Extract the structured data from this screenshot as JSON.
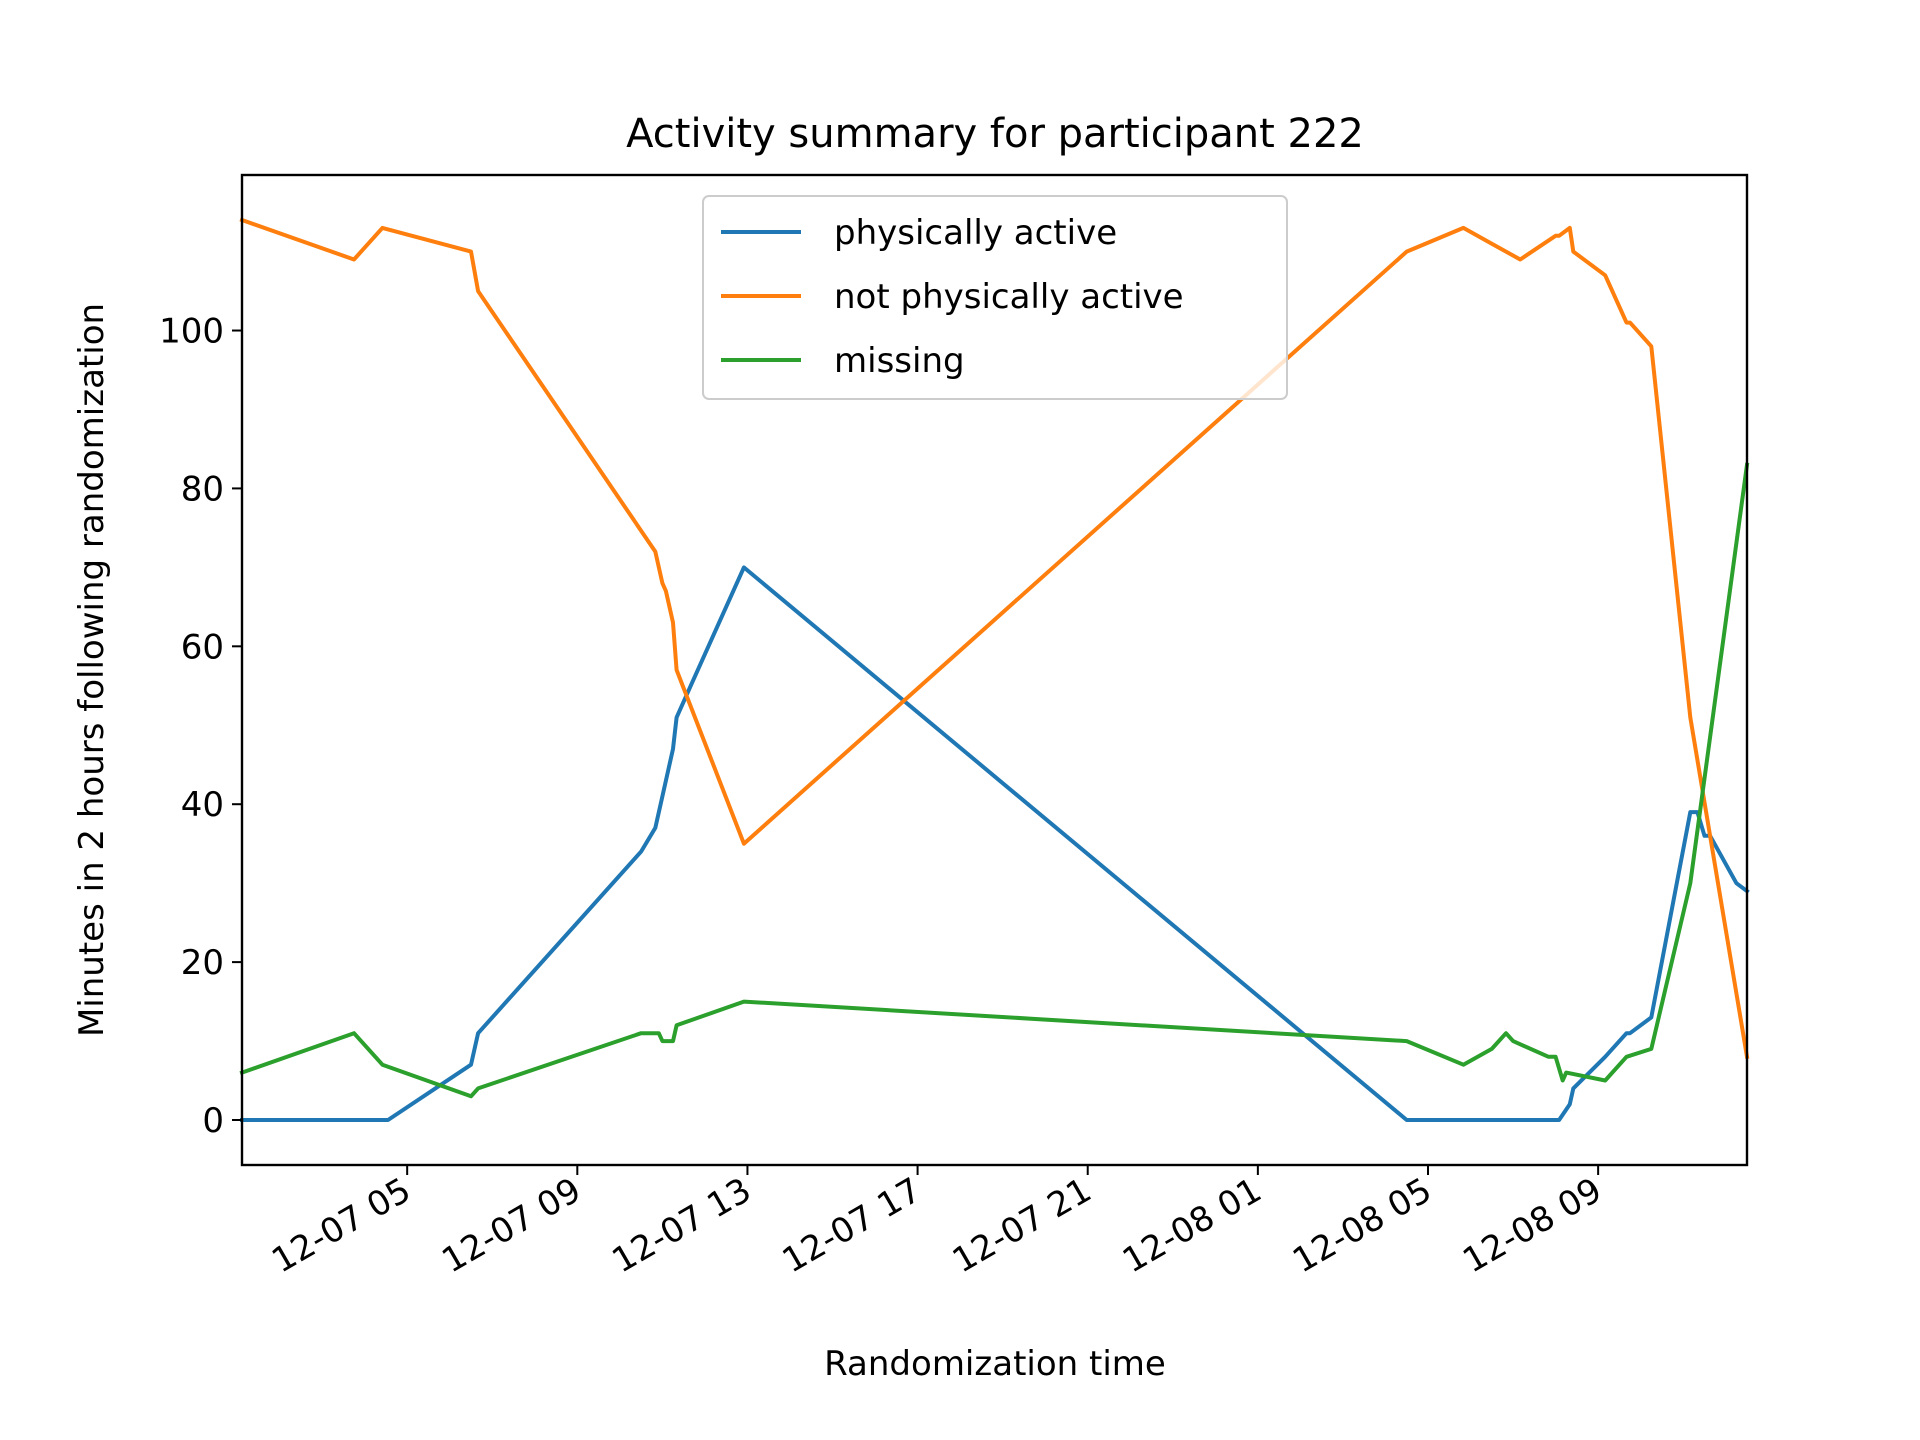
{
  "chart_data": {
    "type": "line",
    "title": "Activity summary for participant 222",
    "xlabel": "Randomization time",
    "ylabel": "Minutes in 2 hours following randomization",
    "x_ticks": [
      "12-07 05",
      "12-07 09",
      "12-07 13",
      "12-07 17",
      "12-07 21",
      "12-08 01",
      "12-08 05",
      "12-08 09"
    ],
    "y_ticks": [
      "0",
      "20",
      "40",
      "60",
      "80",
      "100"
    ],
    "xlim": [
      "12-07 01:07",
      "12-08 12:30"
    ],
    "ylim": [
      -5.7,
      119.7
    ],
    "grid": false,
    "legend_position": "top-center",
    "series": [
      {
        "name": "physically active",
        "color": "#1f77b4",
        "points": [
          [
            "12-07 01:07",
            0
          ],
          [
            "12-07 04:33",
            0
          ],
          [
            "12-07 06:30",
            7
          ],
          [
            "12-07 06:40",
            11
          ],
          [
            "12-07 10:30",
            34
          ],
          [
            "12-07 10:50",
            37
          ],
          [
            "12-07 11:00",
            41
          ],
          [
            "12-07 11:15",
            47
          ],
          [
            "12-07 11:20",
            51
          ],
          [
            "12-07 11:40",
            55
          ],
          [
            "12-07 12:55",
            70
          ],
          [
            "12-08 04:30",
            0
          ],
          [
            "12-08 08:05",
            0
          ],
          [
            "12-08 08:20",
            2
          ],
          [
            "12-08 08:25",
            4
          ],
          [
            "12-08 09:10",
            8
          ],
          [
            "12-08 09:40",
            11
          ],
          [
            "12-08 09:45",
            11
          ],
          [
            "12-08 10:15",
            13
          ],
          [
            "12-08 11:10",
            39
          ],
          [
            "12-08 11:20",
            39
          ],
          [
            "12-08 11:30",
            36
          ],
          [
            "12-08 11:38",
            36
          ],
          [
            "12-08 12:15",
            30
          ],
          [
            "12-08 12:30",
            29
          ]
        ]
      },
      {
        "name": "not physically active",
        "color": "#ff7f0e",
        "points": [
          [
            "12-07 01:07",
            114
          ],
          [
            "12-07 03:45",
            109
          ],
          [
            "12-07 04:25",
            113
          ],
          [
            "12-07 06:30",
            110
          ],
          [
            "12-07 06:40",
            105
          ],
          [
            "12-07 10:50",
            72
          ],
          [
            "12-07 11:00",
            68
          ],
          [
            "12-07 11:05",
            67
          ],
          [
            "12-07 11:15",
            63
          ],
          [
            "12-07 11:20",
            57
          ],
          [
            "12-07 12:55",
            35
          ],
          [
            "12-08 04:30",
            110
          ],
          [
            "12-08 05:50",
            113
          ],
          [
            "12-08 06:30",
            111
          ],
          [
            "12-08 07:10",
            109
          ],
          [
            "12-08 08:00",
            112
          ],
          [
            "12-08 08:05",
            112
          ],
          [
            "12-08 08:20",
            113
          ],
          [
            "12-08 08:25",
            110
          ],
          [
            "12-08 09:10",
            107
          ],
          [
            "12-08 09:40",
            101
          ],
          [
            "12-08 09:45",
            101
          ],
          [
            "12-08 10:15",
            98
          ],
          [
            "12-08 11:10",
            51
          ],
          [
            "12-08 12:30",
            8
          ]
        ]
      },
      {
        "name": "missing",
        "color": "#2ca02c",
        "points": [
          [
            "12-07 01:07",
            6
          ],
          [
            "12-07 03:45",
            11
          ],
          [
            "12-07 04:25",
            7
          ],
          [
            "12-07 06:30",
            3
          ],
          [
            "12-07 06:40",
            4
          ],
          [
            "12-07 10:30",
            11
          ],
          [
            "12-07 10:55",
            11
          ],
          [
            "12-07 11:00",
            10
          ],
          [
            "12-07 11:15",
            10
          ],
          [
            "12-07 11:20",
            12
          ],
          [
            "12-07 12:55",
            15
          ],
          [
            "12-08 04:30",
            10
          ],
          [
            "12-08 05:50",
            7
          ],
          [
            "12-08 06:30",
            9
          ],
          [
            "12-08 06:50",
            11
          ],
          [
            "12-08 07:00",
            10
          ],
          [
            "12-08 07:50",
            8
          ],
          [
            "12-08 08:00",
            8
          ],
          [
            "12-08 08:10",
            5
          ],
          [
            "12-08 08:15",
            6
          ],
          [
            "12-08 09:10",
            5
          ],
          [
            "12-08 09:40",
            8
          ],
          [
            "12-08 10:15",
            9
          ],
          [
            "12-08 11:10",
            30
          ],
          [
            "12-08 12:30",
            83
          ]
        ]
      }
    ]
  }
}
